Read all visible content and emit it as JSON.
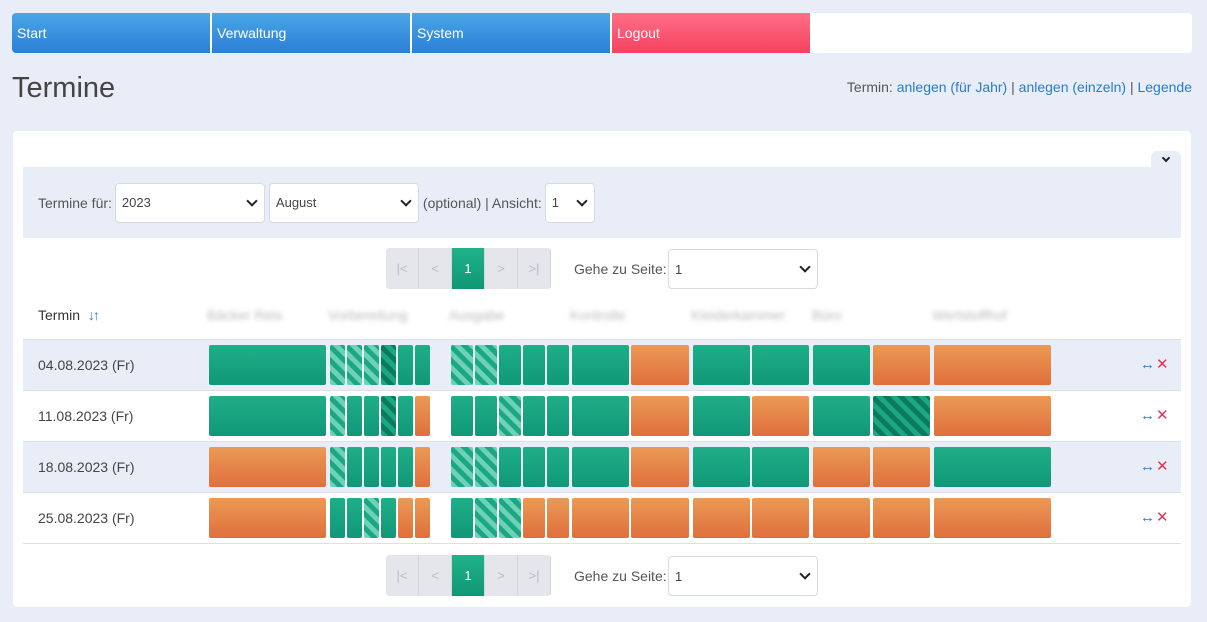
{
  "nav": {
    "items": [
      {
        "label": "Start",
        "style": "blue"
      },
      {
        "label": "Verwaltung",
        "style": "blue"
      },
      {
        "label": "System",
        "style": "blue"
      },
      {
        "label": "Logout",
        "style": "red"
      }
    ]
  },
  "page": {
    "title": "Termine",
    "links_prefix": "Termin:",
    "link_year": "anlegen (für Jahr)",
    "separator": "|",
    "link_single": "anlegen (einzeln)",
    "link_legend": "Legende"
  },
  "filter": {
    "label": "Termine für:",
    "year": "2023",
    "month": "August",
    "optional_text": "(optional) | Ansicht:",
    "view": "1"
  },
  "pager": {
    "first": "|<",
    "prev": "<",
    "current": "1",
    "next": ">",
    "last": ">|",
    "goto_label": "Gehe zu Seite:",
    "goto_value": "1"
  },
  "table": {
    "termin_header": "Termin",
    "sort_icons": "↓↑",
    "columns": [
      "Bäcker Reis",
      "Vorbereitung",
      "Ausgabe",
      "Kontrolle",
      "Kleiderkammer",
      "Büro",
      "Wertstoffhof"
    ],
    "rows": [
      {
        "date": "04.08.2023 (Fr)",
        "cells": [
          "g",
          "sl",
          "sl",
          "sl",
          "sd",
          "g",
          "g",
          "sl",
          "sl",
          "g",
          "g",
          "g",
          "g",
          "o",
          "g",
          "g",
          "g",
          "o",
          "o"
        ]
      },
      {
        "date": "11.08.2023 (Fr)",
        "cells": [
          "g",
          "sl",
          "g",
          "g",
          "sd",
          "g",
          "o",
          "g",
          "g",
          "sl",
          "g",
          "g",
          "g",
          "o",
          "g",
          "o",
          "g",
          "sd",
          "o"
        ]
      },
      {
        "date": "18.08.2023 (Fr)",
        "cells": [
          "o",
          "sl",
          "g",
          "g",
          "g",
          "g",
          "o",
          "sl",
          "sl",
          "g",
          "g",
          "g",
          "g",
          "o",
          "g",
          "g",
          "o",
          "o",
          "g"
        ]
      },
      {
        "date": "25.08.2023 (Fr)",
        "cells": [
          "o",
          "g",
          "g",
          "sl",
          "g",
          "o",
          "o",
          "g",
          "sl",
          "sl",
          "o",
          "o",
          "o",
          "o",
          "o",
          "o",
          "o",
          "o",
          "o"
        ]
      }
    ],
    "action_move": "↔",
    "action_delete": "✕"
  }
}
